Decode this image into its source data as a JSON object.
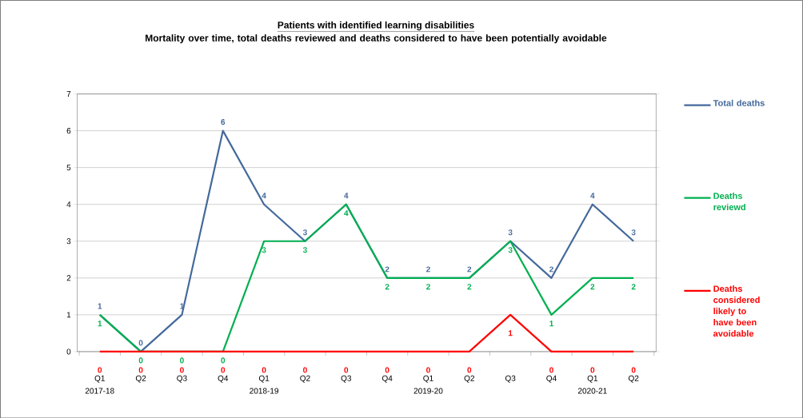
{
  "chart_data": {
    "type": "line",
    "title": "Patients with identified learning disabilities",
    "subtitle": "Mortality over time, total  deaths reviewed and deaths considered to have been potentially avoidable",
    "categories": [
      "Q1",
      "Q2",
      "Q3",
      "Q4",
      "Q1",
      "Q2",
      "Q3",
      "Q4",
      "Q1",
      "Q2",
      "Q3",
      "Q4",
      "Q1",
      "Q2"
    ],
    "annotations": [
      "2017-18",
      "2018-19",
      "2019-20",
      "2020-21"
    ],
    "series": [
      {
        "name": "Total deaths",
        "color": "#44699b",
        "values": [
          1,
          0,
          1,
          6,
          4,
          3,
          4,
          2,
          2,
          2,
          3,
          2,
          4,
          3
        ]
      },
      {
        "name": "Deaths reviewd",
        "color": "#00b050",
        "values": [
          1,
          0,
          0,
          0,
          3,
          3,
          4,
          2,
          2,
          2,
          3,
          1,
          2,
          2
        ]
      },
      {
        "name": "Deaths considered likely to have been avoidable",
        "color": "#ff0000",
        "values": [
          0,
          0,
          0,
          0,
          0,
          0,
          0,
          0,
          0,
          0,
          1,
          0,
          0,
          0
        ]
      }
    ],
    "ylim": [
      0,
      7
    ],
    "yticks": [
      0,
      1,
      2,
      3,
      4,
      5,
      6,
      7
    ],
    "grid": "y",
    "legend": "right",
    "data_labels": true,
    "marker": "none",
    "line_style": "solid"
  }
}
